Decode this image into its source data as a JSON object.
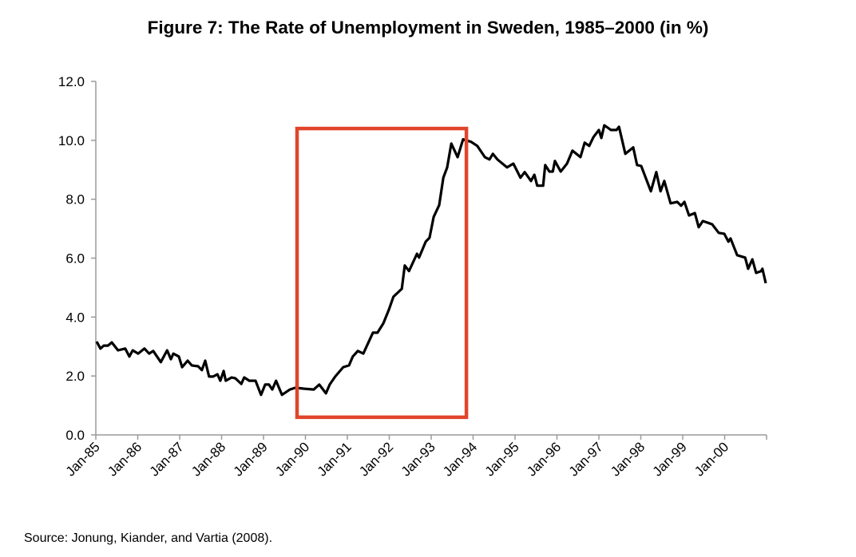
{
  "chart_data": {
    "type": "line",
    "title": "Figure 7: The Rate of Unemployment in Sweden, 1985–2000 (in %)",
    "xlabel": "",
    "ylabel": "",
    "source": "Source: Jonung, Kiander, and Vartia (2008).",
    "xlim": [
      1985,
      2001
    ],
    "ylim": [
      0,
      12
    ],
    "grid": false,
    "legend": "none",
    "y_ticks": [
      0,
      2,
      4,
      6,
      8,
      10,
      12
    ],
    "y_tick_labels": [
      "0.0",
      "2.0",
      "4.0",
      "6.0",
      "8.0",
      "10.0",
      "12.0"
    ],
    "x_ticks": [
      1985,
      1986,
      1987,
      1988,
      1989,
      1990,
      1991,
      1992,
      1993,
      1994,
      1995,
      1996,
      1997,
      1998,
      1999,
      2000
    ],
    "x_tick_labels": [
      "Jan-85",
      "Jan-86",
      "Jan-87",
      "Jan-88",
      "Jan-89",
      "Jan-90",
      "Jan-91",
      "Jan-92",
      "Jan-93",
      "Jan-94",
      "Jan-95",
      "Jan-96",
      "Jan-97",
      "Jan-98",
      "Jan-99",
      "Jan-00"
    ],
    "line_color": "#000000",
    "highlight": {
      "x_range": [
        1989.8,
        1993.84
      ],
      "y_range": [
        0.6,
        10.4
      ],
      "color": "#e0452b"
    },
    "series": [
      {
        "name": "Unemployment rate (%)",
        "x": [
          1985.02,
          1985.11,
          1985.19,
          1985.29,
          1985.38,
          1985.53,
          1985.7,
          1985.8,
          1985.88,
          1986.01,
          1986.16,
          1986.27,
          1986.37,
          1986.55,
          1986.7,
          1986.79,
          1986.85,
          1986.98,
          1987.06,
          1987.19,
          1987.29,
          1987.44,
          1987.53,
          1987.61,
          1987.7,
          1987.8,
          1987.9,
          1987.97,
          1988.05,
          1988.1,
          1988.24,
          1988.33,
          1988.47,
          1988.54,
          1988.66,
          1988.81,
          1988.94,
          1989.04,
          1989.13,
          1989.21,
          1989.3,
          1989.44,
          1989.63,
          1989.76,
          1989.95,
          1990.2,
          1990.33,
          1990.49,
          1990.58,
          1990.71,
          1990.9,
          1991.04,
          1991.13,
          1991.25,
          1991.38,
          1991.61,
          1991.72,
          1991.86,
          1991.99,
          1992.1,
          1992.3,
          1992.37,
          1992.47,
          1992.66,
          1992.71,
          1992.87,
          1992.96,
          1993.06,
          1993.19,
          1993.29,
          1993.38,
          1993.48,
          1993.63,
          1993.76,
          1993.95,
          1994.1,
          1994.28,
          1994.39,
          1994.47,
          1994.58,
          1994.81,
          1994.96,
          1995.13,
          1995.23,
          1995.38,
          1995.46,
          1995.53,
          1995.67,
          1995.72,
          1995.82,
          1995.9,
          1995.95,
          1996.09,
          1996.24,
          1996.37,
          1996.56,
          1996.66,
          1996.77,
          1996.87,
          1997.0,
          1997.06,
          1997.13,
          1997.29,
          1997.42,
          1997.48,
          1997.63,
          1997.82,
          1997.91,
          1998.01,
          1998.24,
          1998.37,
          1998.47,
          1998.56,
          1998.71,
          1998.87,
          1998.96,
          1999.04,
          1999.15,
          1999.29,
          1999.38,
          1999.48,
          1999.7,
          1999.86,
          1999.99,
          2000.09,
          2000.14,
          2000.3,
          2000.49,
          2000.56,
          2000.66,
          2000.75,
          2000.87,
          2000.9,
          2000.98
        ],
        "values": [
          3.17,
          2.93,
          3.03,
          3.03,
          3.14,
          2.87,
          2.93,
          2.66,
          2.87,
          2.76,
          2.93,
          2.76,
          2.85,
          2.47,
          2.87,
          2.57,
          2.76,
          2.66,
          2.3,
          2.52,
          2.36,
          2.33,
          2.2,
          2.52,
          1.98,
          1.98,
          2.06,
          1.84,
          2.17,
          1.84,
          1.95,
          1.92,
          1.73,
          1.95,
          1.84,
          1.84,
          1.36,
          1.71,
          1.71,
          1.54,
          1.84,
          1.36,
          1.54,
          1.6,
          1.57,
          1.54,
          1.71,
          1.41,
          1.71,
          1.98,
          2.3,
          2.36,
          2.66,
          2.85,
          2.76,
          3.47,
          3.47,
          3.79,
          4.25,
          4.69,
          4.96,
          5.75,
          5.56,
          6.15,
          6.02,
          6.56,
          6.69,
          7.4,
          7.8,
          8.73,
          9.08,
          9.89,
          9.43,
          10.03,
          9.95,
          9.81,
          9.43,
          9.35,
          9.54,
          9.35,
          9.08,
          9.21,
          8.73,
          8.92,
          8.62,
          8.83,
          8.46,
          8.46,
          9.16,
          8.94,
          8.94,
          9.3,
          8.94,
          9.21,
          9.65,
          9.43,
          9.92,
          9.81,
          10.11,
          10.35,
          10.08,
          10.51,
          10.35,
          10.35,
          10.46,
          9.54,
          9.76,
          9.16,
          9.13,
          8.27,
          8.92,
          8.27,
          8.62,
          7.86,
          7.91,
          7.78,
          7.91,
          7.45,
          7.53,
          7.05,
          7.26,
          7.15,
          6.86,
          6.83,
          6.56,
          6.67,
          6.1,
          6.02,
          5.64,
          5.96,
          5.5,
          5.56,
          5.64,
          5.15
        ]
      }
    ]
  }
}
